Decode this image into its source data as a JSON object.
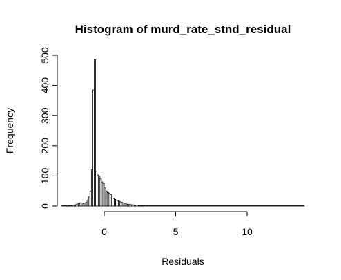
{
  "chart_data": {
    "type": "bar",
    "title": "Histogram of murd_rate_stnd_residual",
    "xlabel": "Residuals",
    "ylabel": "Frequency",
    "xlim": [
      -3,
      14
    ],
    "ylim": [
      0,
      500
    ],
    "x_ticks": [
      0,
      5,
      10
    ],
    "y_ticks": [
      0,
      100,
      200,
      300,
      400,
      500
    ],
    "bin_width": 0.1,
    "bin_start": -3.0,
    "values": [
      1,
      1,
      1,
      1,
      1,
      2,
      2,
      3,
      3,
      4,
      5,
      7,
      9,
      11,
      10,
      9,
      10,
      12,
      20,
      30,
      50,
      120,
      385,
      485,
      115,
      103,
      100,
      90,
      80,
      75,
      60,
      50,
      45,
      43,
      38,
      33,
      25,
      22,
      20,
      18,
      16,
      14,
      12,
      10,
      9,
      7,
      6,
      5,
      5,
      4,
      4,
      3,
      3,
      3,
      2,
      2,
      2,
      2,
      1,
      1,
      1,
      1,
      1,
      1,
      1,
      1,
      1,
      1,
      1,
      1,
      1,
      1,
      1,
      1,
      1,
      1,
      1,
      1,
      1,
      1,
      1,
      1,
      1,
      1,
      1,
      1,
      1,
      1,
      1,
      1,
      1,
      1,
      1,
      1,
      1,
      1,
      1,
      1,
      1,
      1,
      1,
      1,
      1,
      1,
      1,
      1,
      1,
      1,
      1,
      1,
      1,
      1,
      1,
      1,
      1,
      1,
      1,
      1,
      1,
      1,
      1,
      1,
      1,
      1,
      1,
      1,
      1,
      1,
      1,
      1,
      1,
      1,
      1,
      1,
      1,
      1,
      1,
      1,
      1,
      1,
      1,
      1,
      1,
      1,
      1,
      1,
      1,
      1,
      1,
      1,
      1,
      1,
      1,
      1,
      1,
      1,
      1,
      1,
      1,
      1,
      1,
      1,
      1,
      1,
      1,
      1,
      1,
      1,
      1,
      1
    ]
  }
}
